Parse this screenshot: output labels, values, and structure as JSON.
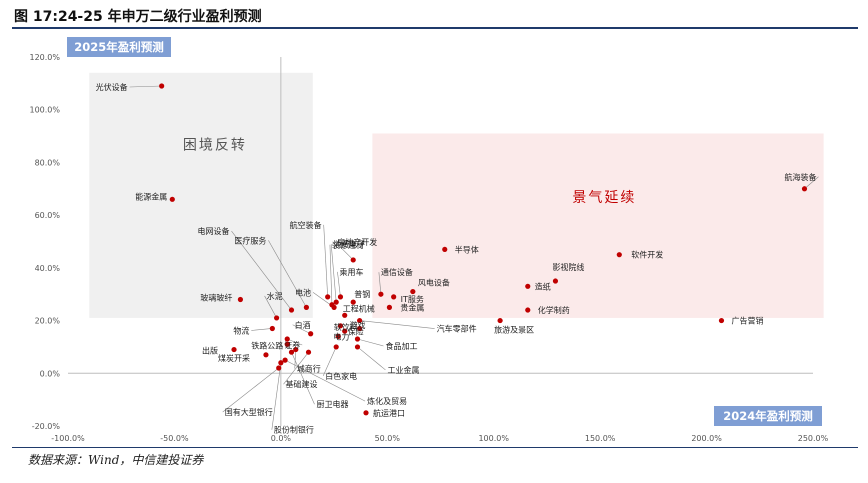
{
  "figure_title": "图 17:24-25 年申万二级行业盈利预测",
  "source_note": "数据来源：Wind，中信建投证券",
  "colors": {
    "accent": "#1f3a6b",
    "point": "#c00000",
    "badge_bg": "#7f9ed4",
    "zone_gray": "#f0f0f0",
    "zone_pink": "#fbeaea",
    "zone_red_text": "#c00000",
    "zone_gray_text": "#555555"
  },
  "chart_data": {
    "type": "scatter",
    "xlabel": "2024年盈利预测",
    "ylabel": "2025年盈利预测",
    "xlim": [
      -100,
      250
    ],
    "ylim": [
      -20,
      120
    ],
    "x_ticks": [
      "-100.0%",
      "-50.0%",
      "0.0%",
      "50.0%",
      "100.0%",
      "150.0%",
      "200.0%",
      "250.0%"
    ],
    "y_ticks": [
      "-20.0%",
      "0.0%",
      "20.0%",
      "40.0%",
      "60.0%",
      "80.0%",
      "100.0%",
      "120.0%"
    ],
    "zones": [
      {
        "name": "困境反转",
        "x_range": [
          -90,
          15
        ],
        "y_range": [
          21,
          114
        ]
      },
      {
        "name": "景气延续",
        "x_range": [
          43,
          255
        ],
        "y_range": [
          21,
          91
        ]
      }
    ],
    "points": [
      {
        "name": "光伏设备",
        "x": -56,
        "y": 109
      },
      {
        "name": "能源金属",
        "x": -51,
        "y": 66
      },
      {
        "name": "航海装备",
        "x": 246,
        "y": 70
      },
      {
        "name": "玻璃玻纤",
        "x": -19,
        "y": 28
      },
      {
        "name": "软件开发",
        "x": 159,
        "y": 45
      },
      {
        "name": "影视院线",
        "x": 129,
        "y": 35
      },
      {
        "name": "造纸",
        "x": 116,
        "y": 33
      },
      {
        "name": "化学制药",
        "x": 116,
        "y": 24
      },
      {
        "name": "广告营销",
        "x": 207,
        "y": 20
      },
      {
        "name": "旅游及景区",
        "x": 103,
        "y": 20
      },
      {
        "name": "半导体",
        "x": 77,
        "y": 47
      },
      {
        "name": "风电设备",
        "x": 62,
        "y": 31
      },
      {
        "name": "IT服务",
        "x": 53,
        "y": 29
      },
      {
        "name": "贵金属",
        "x": 51,
        "y": 25
      },
      {
        "name": "通信设备",
        "x": 47,
        "y": 30
      },
      {
        "name": "房地产开发",
        "x": 34,
        "y": 43
      },
      {
        "name": "乘用车",
        "x": 28,
        "y": 29
      },
      {
        "name": "普钢",
        "x": 34,
        "y": 27
      },
      {
        "name": "工程机械",
        "x": 30,
        "y": 22
      },
      {
        "name": "航空装备",
        "x": 22,
        "y": 29
      },
      {
        "name": "装修建材",
        "x": 24,
        "y": 26
      },
      {
        "name": "消费电子",
        "x": 26,
        "y": 27
      },
      {
        "name": "电池",
        "x": 25,
        "y": 25
      },
      {
        "name": "电网设备",
        "x": 5,
        "y": 24
      },
      {
        "name": "医疗服务",
        "x": 12,
        "y": 25
      },
      {
        "name": "水泥",
        "x": -2,
        "y": 21
      },
      {
        "name": "物流",
        "x": -4,
        "y": 17
      },
      {
        "name": "白酒",
        "x": 14,
        "y": 15
      },
      {
        "name": "证券",
        "x": 3,
        "y": 13
      },
      {
        "name": "游戏",
        "x": 28,
        "y": 18
      },
      {
        "name": "软饮料",
        "x": 30,
        "y": 16
      },
      {
        "name": "保险",
        "x": 37,
        "y": 17
      },
      {
        "name": "汽车零部件",
        "x": 37,
        "y": 20
      },
      {
        "name": "电力",
        "x": 27,
        "y": 14
      },
      {
        "name": "铁路公路",
        "x": 3,
        "y": 11
      },
      {
        "name": "出版",
        "x": -22,
        "y": 9
      },
      {
        "name": "食品加工",
        "x": 36,
        "y": 13
      },
      {
        "name": "工业金属",
        "x": 36,
        "y": 10
      },
      {
        "name": "白色家电",
        "x": 26,
        "y": 10
      },
      {
        "name": "城商行",
        "x": 7,
        "y": 9
      },
      {
        "name": "基础建设",
        "x": 13,
        "y": 8
      },
      {
        "name": "煤炭开采",
        "x": -7,
        "y": 7
      },
      {
        "name": "炼化及贸易",
        "x": 2,
        "y": 5
      },
      {
        "name": "厨卫电器",
        "x": 5,
        "y": 8
      },
      {
        "name": "国有大型银行",
        "x": -1,
        "y": 2
      },
      {
        "name": "股份制银行",
        "x": 0,
        "y": 4
      },
      {
        "name": "航运港口",
        "x": 40,
        "y": -15
      }
    ]
  }
}
